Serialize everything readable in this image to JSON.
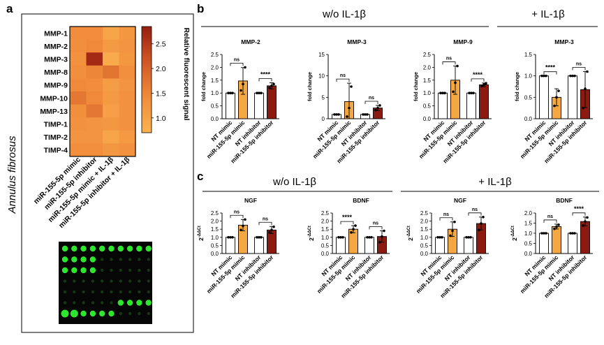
{
  "panel_labels": {
    "a": "a",
    "b": "b",
    "c": "c"
  },
  "side_label": "Annulus fibrosus",
  "colors": {
    "white": "#ffffff",
    "orange": "#f4a742",
    "darkred": "#8b1a10",
    "grid": "#000000"
  },
  "chart_data": [
    {
      "type": "heatmap",
      "panel": "a",
      "rows": [
        "MMP-1",
        "MMP-2",
        "MMP-3",
        "MMP-8",
        "MMP-9",
        "MMP-10",
        "MMP-13",
        "TIMP-1",
        "TIMP-2",
        "TIMP-4"
      ],
      "columns": [
        "miR-155-5p mimic",
        "miR-155-5p inhibitor",
        "miR-155-5p mimic + IL-1β",
        "miR-155-5p inhibitor + IL-1β"
      ],
      "values": [
        [
          1.4,
          1.4,
          0.95,
          1.2
        ],
        [
          1.35,
          1.45,
          1.15,
          1.25
        ],
        [
          1.3,
          2.7,
          0.85,
          1.2
        ],
        [
          1.35,
          1.5,
          1.75,
          1.35
        ],
        [
          1.45,
          1.4,
          1.1,
          1.25
        ],
        [
          1.7,
          1.45,
          1.15,
          1.3
        ],
        [
          1.35,
          1.7,
          1.05,
          1.3
        ],
        [
          1.3,
          1.25,
          1.2,
          1.3
        ],
        [
          1.25,
          1.25,
          0.95,
          1.15
        ],
        [
          1.35,
          1.35,
          1.2,
          1.3
        ]
      ],
      "colorbar": {
        "label": "Relative fluorescent signal",
        "ticks": [
          1.0,
          1.5,
          2.0,
          2.5
        ],
        "range": [
          0.7,
          2.85
        ]
      }
    },
    {
      "type": "bar",
      "panel": "b",
      "group": "w/o IL-1β",
      "title": "MMP-2",
      "ylabel": "fold change",
      "ylim": [
        0,
        2.5
      ],
      "yticks": [
        0,
        0.5,
        1.0,
        1.5,
        2.0,
        2.5
      ],
      "categories": [
        "NT mimic",
        "miR-155-5p mimic",
        "NT inhibitor",
        "miR-155-5p inhibitor"
      ],
      "values": [
        1.0,
        1.47,
        1.0,
        1.28
      ],
      "errors": [
        0,
        0.52,
        0,
        0.12
      ],
      "points": [
        [
          1,
          1,
          1
        ],
        [
          1.1,
          1.35,
          2.0
        ],
        [
          1,
          1,
          1
        ],
        [
          1.2,
          1.28,
          1.35
        ]
      ],
      "colors": [
        "white",
        "orange",
        "white",
        "darkred"
      ],
      "comparisons": [
        {
          "label": "ns"
        },
        {
          "label": "****"
        }
      ]
    },
    {
      "type": "bar",
      "panel": "b",
      "group": "w/o IL-1β",
      "title": "MMP-3",
      "ylabel": "fold change",
      "ylim": [
        0,
        15
      ],
      "yticks": [
        0,
        5,
        10,
        15
      ],
      "categories": [
        "NT mimic",
        "miR-155-5p mimic",
        "NT inhibitor",
        "miR-155-5p inhibitor"
      ],
      "values": [
        1.0,
        4.0,
        1.0,
        2.5
      ],
      "errors": [
        0,
        4.3,
        0,
        0.6
      ],
      "points": [
        [
          1,
          1,
          1
        ],
        [
          0.5,
          2.5,
          7.5
        ],
        [
          1,
          1,
          1
        ],
        [
          2.0,
          2.5,
          3.1
        ]
      ],
      "colors": [
        "white",
        "orange",
        "white",
        "darkred"
      ],
      "comparisons": [
        {
          "label": "ns"
        },
        {
          "label": "ns"
        }
      ]
    },
    {
      "type": "bar",
      "panel": "b",
      "group": "w/o IL-1β",
      "title": "MMP-9",
      "ylabel": "fold change",
      "ylim": [
        0,
        2.5
      ],
      "yticks": [
        0,
        0.5,
        1.0,
        1.5,
        2.0,
        2.5
      ],
      "categories": [
        "NT mimic",
        "miR-155-5p mimic",
        "NT inhibitor",
        "miR-155-5p inhibitor"
      ],
      "values": [
        1.0,
        1.5,
        1.0,
        1.32
      ],
      "errors": [
        0,
        0.55,
        0,
        0.07
      ],
      "points": [
        [
          1,
          1,
          1
        ],
        [
          1.05,
          1.4,
          2.05
        ],
        [
          1,
          1,
          1
        ],
        [
          1.27,
          1.33,
          1.38
        ]
      ],
      "colors": [
        "white",
        "orange",
        "white",
        "darkred"
      ],
      "comparisons": [
        {
          "label": "ns"
        },
        {
          "label": "****"
        }
      ]
    },
    {
      "type": "bar",
      "panel": "b",
      "group": "+ IL-1β",
      "title": "MMP-3",
      "ylabel": "fold change",
      "ylim": [
        0,
        1.5
      ],
      "yticks": [
        0,
        0.5,
        1.0,
        1.5
      ],
      "categories": [
        "NT mimic",
        "miR-155-5p mimic",
        "NT inhibitor",
        "miR-155-5p inhibitor"
      ],
      "values": [
        1.0,
        0.5,
        1.0,
        0.68
      ],
      "errors": [
        0,
        0.2,
        0,
        0.42
      ],
      "points": [
        [
          1,
          1,
          1
        ],
        [
          0.3,
          0.5,
          0.65
        ],
        [
          1,
          1,
          1
        ],
        [
          0.25,
          0.7,
          1.1
        ]
      ],
      "colors": [
        "white",
        "orange",
        "white",
        "darkred"
      ],
      "comparisons": [
        {
          "label": "****"
        },
        {
          "label": "ns"
        }
      ]
    },
    {
      "type": "bar",
      "panel": "c",
      "group": "w/o IL-1β",
      "title": "NGF",
      "ylabel": "2-ΔΔCt",
      "ylim": [
        0,
        2.5
      ],
      "yticks": [
        0,
        0.5,
        1.0,
        1.5,
        2.0,
        2.5
      ],
      "categories": [
        "NT mimic",
        "miR-155-5p mimic",
        "NT inhibitor",
        "miR-155-5p inhibitor"
      ],
      "values": [
        1.0,
        1.75,
        1.0,
        1.45
      ],
      "errors": [
        0,
        0.35,
        0,
        0.22
      ],
      "points": [
        [
          1,
          1,
          1
        ],
        [
          1.45,
          1.7,
          2.1
        ],
        [
          1,
          1,
          1
        ],
        [
          1.3,
          1.45,
          1.65
        ]
      ],
      "colors": [
        "white",
        "orange",
        "white",
        "darkred"
      ],
      "comparisons": [
        {
          "label": "ns"
        },
        {
          "label": "ns"
        }
      ]
    },
    {
      "type": "bar",
      "panel": "c",
      "group": "w/o IL-1β",
      "title": "BDNF",
      "ylabel": "2-ΔΔCt",
      "ylim": [
        0,
        2.5
      ],
      "yticks": [
        0,
        0.5,
        1.0,
        1.5,
        2.0,
        2.5
      ],
      "categories": [
        "NT mimic",
        "miR-155-5p mimic",
        "NT inhibitor",
        "miR-155-5p inhibitor"
      ],
      "values": [
        1.0,
        1.5,
        1.0,
        1.05
      ],
      "errors": [
        0,
        0.22,
        0,
        0.35
      ],
      "points": [
        [
          1,
          1,
          1
        ],
        [
          1.3,
          1.5,
          1.72
        ],
        [
          1,
          1,
          1
        ],
        [
          0.7,
          1.05,
          1.4
        ]
      ],
      "colors": [
        "white",
        "orange",
        "white",
        "darkred"
      ],
      "comparisons": [
        {
          "label": "****"
        },
        {
          "label": "ns"
        }
      ]
    },
    {
      "type": "bar",
      "panel": "c",
      "group": "+ IL-1β",
      "title": "NGF",
      "ylabel": "2-ΔΔCt",
      "ylim": [
        0,
        2.5
      ],
      "yticks": [
        0,
        0.5,
        1.0,
        1.5,
        2.0,
        2.5
      ],
      "categories": [
        "NT mimic",
        "miR-155-5p mimic",
        "NT inhibitor",
        "miR-155-5p inhibitor"
      ],
      "values": [
        1.0,
        1.5,
        1.0,
        1.85
      ],
      "errors": [
        0,
        0.45,
        0,
        0.4
      ],
      "points": [
        [
          1,
          1,
          1
        ],
        [
          1.1,
          1.4,
          1.95
        ],
        [
          1,
          1,
          1
        ],
        [
          1.45,
          1.85,
          2.25
        ]
      ],
      "colors": [
        "white",
        "orange",
        "white",
        "darkred"
      ],
      "comparisons": [
        {
          "label": "ns"
        },
        {
          "label": "ns"
        }
      ]
    },
    {
      "type": "bar",
      "panel": "c",
      "group": "+ IL-1β",
      "title": "BDNF",
      "ylabel": "2-ΔΔCt",
      "ylim": [
        0,
        2.0
      ],
      "yticks": [
        0,
        0.5,
        1.0,
        1.5,
        2.0
      ],
      "categories": [
        "NT mimic",
        "miR-155-5p mimic",
        "NT inhibitor",
        "miR-155-5p inhibitor"
      ],
      "values": [
        1.0,
        1.33,
        1.0,
        1.58
      ],
      "errors": [
        0,
        0.12,
        0,
        0.22
      ],
      "points": [
        [
          1,
          1,
          1
        ],
        [
          1.22,
          1.32,
          1.42
        ],
        [
          1,
          1,
          1
        ],
        [
          1.38,
          1.58,
          1.78
        ]
      ],
      "colors": [
        "white",
        "orange",
        "white",
        "darkred"
      ],
      "comparisons": [
        {
          "label": "ns"
        },
        {
          "label": "****"
        }
      ]
    }
  ],
  "group_headers": {
    "b_left": "w/o IL-1β",
    "b_right": "+ IL-1β",
    "c_left": "w/o IL-1β",
    "c_right": "+ IL-1β"
  },
  "blot": {
    "rows": 7,
    "cols": 10
  }
}
